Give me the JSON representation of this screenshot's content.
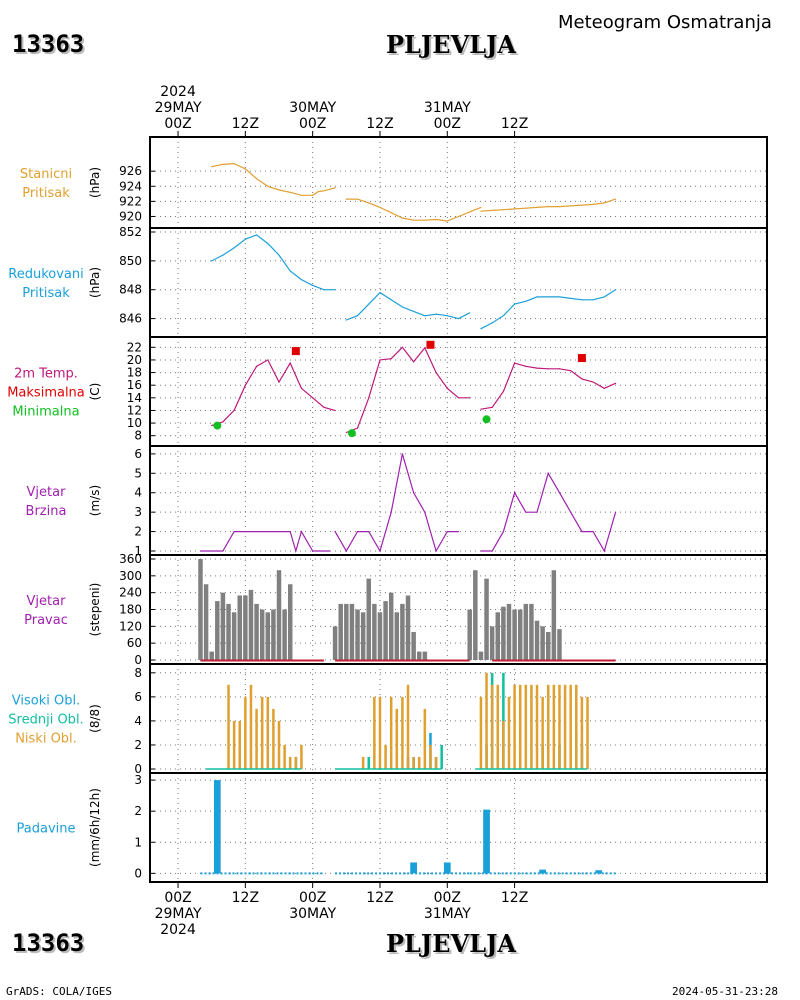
{
  "header": {
    "station_code": "13363",
    "station_name": "PLJEVLJA",
    "subtitle": "Meteogram Osmatranja"
  },
  "footer": {
    "left": "GrADS: COLA/IGES",
    "right": "2024-05-31-23:28"
  },
  "time_axis": {
    "hour_labels": [
      "00Z",
      "12Z",
      "00Z",
      "12Z",
      "00Z",
      "12Z"
    ],
    "top_dates": [
      {
        "lines": [
          "2024",
          "29MAY",
          "00Z"
        ],
        "slot": 0
      },
      {
        "lines": [
          "30MAY",
          "00Z"
        ],
        "slot": 2
      },
      {
        "lines": [
          "31MAY",
          "00Z"
        ],
        "slot": 4
      }
    ],
    "bottom_dates": [
      {
        "lines": [
          "00Z",
          "29MAY",
          "2024"
        ],
        "slot": 0
      },
      {
        "lines": [
          "00Z",
          "30MAY"
        ],
        "slot": 2
      },
      {
        "lines": [
          "00Z",
          "31MAY"
        ],
        "slot": 4
      }
    ],
    "range_hours": [
      -5,
      105
    ]
  },
  "chart_data": [
    {
      "type": "line",
      "id": "station-pressure",
      "labels": [
        "Stanicni",
        "Pritisak"
      ],
      "label_color": "#e0a030",
      "unit": "(hPa)",
      "ylim": [
        919,
        930
      ],
      "yticks": [
        920,
        922,
        924,
        926
      ],
      "color": "#e0a030",
      "series": [
        {
          "x": [
            6,
            8,
            10,
            12,
            14,
            16,
            18,
            20,
            22,
            24,
            25,
            26,
            27,
            28
          ],
          "y": [
            926.6,
            926.9,
            927.0,
            926.3,
            925.0,
            924.0,
            923.5,
            923.2,
            922.8,
            922.8,
            923.3,
            923.4,
            923.6,
            923.8
          ]
        },
        {
          "x": [
            30,
            32,
            34,
            36,
            38,
            40,
            42,
            44,
            46,
            48,
            50,
            52,
            54
          ],
          "y": [
            922.3,
            922.3,
            921.8,
            921.2,
            920.5,
            919.8,
            919.5,
            919.5,
            919.6,
            919.4,
            920.0,
            920.6,
            921.2
          ]
        },
        {
          "x": [
            54,
            56,
            58,
            60,
            62,
            64,
            66,
            68,
            70,
            72,
            74,
            76,
            78
          ],
          "y": [
            920.7,
            920.8,
            920.9,
            921.0,
            921.1,
            921.2,
            921.3,
            921.3,
            921.4,
            921.5,
            921.6,
            921.8,
            922.3
          ]
        }
      ]
    },
    {
      "type": "line",
      "id": "reduced-pressure",
      "labels": [
        "Redukovani",
        "Pritisak"
      ],
      "label_color": "#1aa0d8",
      "unit": "(hPa)",
      "ylim": [
        845,
        852
      ],
      "yticks": [
        846,
        848,
        850,
        852
      ],
      "color": "#1aa0d8",
      "series": [
        {
          "x": [
            6,
            8,
            10,
            12,
            14,
            16,
            18,
            20,
            22,
            24,
            26,
            28
          ],
          "y": [
            850.0,
            850.4,
            850.9,
            851.5,
            851.8,
            851.2,
            850.4,
            849.3,
            848.7,
            848.3,
            848.0,
            848.0
          ]
        },
        {
          "x": [
            30,
            32,
            34,
            36,
            38,
            40,
            42,
            44,
            46,
            48,
            50,
            52
          ],
          "y": [
            845.9,
            846.2,
            847.0,
            847.8,
            847.3,
            846.8,
            846.5,
            846.2,
            846.3,
            846.2,
            846.0,
            846.4
          ]
        },
        {
          "x": [
            54,
            56,
            58,
            60,
            62,
            64,
            66,
            68,
            70,
            72,
            74,
            76,
            78
          ],
          "y": [
            845.3,
            845.7,
            846.2,
            847.0,
            847.2,
            847.5,
            847.5,
            847.5,
            847.4,
            847.3,
            847.3,
            847.5,
            848.0
          ]
        }
      ]
    },
    {
      "type": "line",
      "id": "temperature",
      "labels": [
        "2m Temp.",
        "Maksimalna",
        "Minimalna"
      ],
      "label_colors": [
        "#c0187a",
        "#e00000",
        "#10c020"
      ],
      "unit": "(C)",
      "ylim": [
        7,
        23
      ],
      "yticks": [
        8,
        10,
        12,
        14,
        16,
        18,
        20,
        22
      ],
      "color": "#c0187a",
      "series": [
        {
          "x": [
            6,
            8,
            10,
            12,
            14,
            16,
            18,
            20,
            22,
            24,
            26,
            28
          ],
          "y": [
            9.6,
            10.2,
            12.0,
            16.0,
            19.0,
            20.0,
            16.5,
            19.5,
            15.5,
            14.0,
            12.5,
            12.0
          ]
        },
        {
          "x": [
            30,
            32,
            34,
            36,
            38,
            40,
            42,
            44,
            46,
            48,
            50,
            52
          ],
          "y": [
            8.5,
            9.2,
            14.0,
            20.0,
            20.2,
            22.0,
            19.7,
            21.9,
            18.0,
            15.5,
            14.0,
            14.0
          ]
        },
        {
          "x": [
            54,
            56,
            58,
            60,
            62,
            64,
            66,
            68,
            70,
            72,
            74,
            76,
            78
          ],
          "y": [
            12.2,
            12.5,
            15.0,
            19.5,
            19.0,
            18.7,
            18.6,
            18.6,
            18.3,
            17.0,
            16.5,
            15.5,
            16.3
          ]
        }
      ],
      "max_points": [
        {
          "x": 21,
          "y": 21.4
        },
        {
          "x": 45,
          "y": 22.4
        },
        {
          "x": 72,
          "y": 20.3
        }
      ],
      "min_points": [
        {
          "x": 7,
          "y": 9.6
        },
        {
          "x": 31,
          "y": 8.4
        },
        {
          "x": 55,
          "y": 10.6
        }
      ],
      "max_color": "#e00000",
      "min_color": "#10c020"
    },
    {
      "type": "line",
      "id": "wind-speed",
      "labels": [
        "Vjetar",
        "Brzina"
      ],
      "label_color": "#a020b0",
      "unit": "(m/s)",
      "ylim": [
        1,
        6.2
      ],
      "yticks": [
        1,
        2,
        3,
        4,
        5,
        6
      ],
      "color": "#a020b0",
      "series": [
        {
          "x": [
            4,
            7,
            8,
            9,
            10,
            12,
            14,
            16,
            18,
            20,
            21,
            22,
            24,
            25,
            27
          ],
          "y": [
            1.0,
            1.0,
            1.0,
            1.5,
            2.0,
            2.0,
            2.0,
            2.0,
            2.0,
            2.0,
            1.0,
            2.0,
            1.0,
            1.0,
            1.0
          ]
        },
        {
          "x": [
            28,
            30,
            32,
            34,
            36,
            38,
            40,
            42,
            44,
            46,
            48,
            50
          ],
          "y": [
            2.0,
            1.0,
            2.0,
            2.0,
            1.0,
            3.0,
            6.0,
            4.0,
            3.0,
            1.0,
            2.0,
            2.0
          ]
        },
        {
          "x": [
            54,
            56,
            58,
            60,
            62,
            64,
            66,
            68,
            70,
            72,
            74,
            76,
            78
          ],
          "y": [
            1.0,
            1.0,
            2.0,
            4.0,
            3.0,
            3.0,
            5.0,
            4.0,
            3.0,
            2.0,
            2.0,
            1.0,
            3.0
          ]
        }
      ]
    },
    {
      "type": "bar",
      "id": "wind-direction",
      "labels": [
        "Vjetar",
        "Pravac"
      ],
      "label_color": "#a020b0",
      "unit": "(stepeni)",
      "ylim": [
        0,
        360
      ],
      "yticks": [
        0,
        60,
        120,
        180,
        240,
        300,
        360
      ],
      "color": "#808080",
      "baseline_color": "#c02030",
      "baseline_ranges": [
        [
          4,
          26
        ],
        [
          28,
          52
        ],
        [
          56,
          78
        ]
      ],
      "bar_hours": 1,
      "x": [
        4,
        5,
        6,
        7,
        8,
        9,
        10,
        11,
        12,
        13,
        14,
        15,
        16,
        17,
        18,
        19,
        20,
        21,
        22,
        23,
        24,
        25,
        26,
        27,
        28,
        29,
        30,
        31,
        32,
        33,
        34,
        35,
        36,
        37,
        38,
        39,
        40,
        41,
        42,
        43,
        44,
        45,
        46,
        47,
        48,
        49,
        50,
        51,
        52,
        53,
        54,
        55,
        56,
        57,
        58,
        59,
        60,
        61,
        62,
        63,
        64,
        65,
        66,
        67,
        68,
        69,
        70,
        71,
        72,
        73,
        74,
        75
      ],
      "values": [
        360,
        270,
        30,
        210,
        240,
        200,
        170,
        230,
        230,
        250,
        200,
        180,
        170,
        180,
        320,
        180,
        270,
        0,
        0,
        0,
        0,
        0,
        0,
        0,
        120,
        200,
        200,
        200,
        180,
        170,
        290,
        200,
        170,
        210,
        240,
        170,
        200,
        230,
        100,
        30,
        30,
        0,
        0,
        0,
        0,
        0,
        0,
        0,
        180,
        320,
        30,
        290,
        120,
        170,
        190,
        200,
        180,
        180,
        200,
        200,
        140,
        120,
        100,
        320,
        110,
        0,
        0,
        0,
        0,
        0,
        0,
        0
      ]
    },
    {
      "type": "bar",
      "id": "cloud-cover",
      "labels": [
        "Visoki Obl.",
        "Srednji Obl.",
        "Niski Obl."
      ],
      "label_colors": [
        "#1aa0d8",
        "#10c0a0",
        "#e0a030"
      ],
      "unit": "(8/8)",
      "ylim": [
        0,
        8.4
      ],
      "yticks": [
        0,
        2,
        4,
        6,
        8
      ],
      "series": [
        {
          "name": "Visoki Obl.",
          "color": "#1aa0d8",
          "x": [
            20,
            21,
            41,
            42,
            43,
            45,
            46
          ],
          "values": [
            1,
            1,
            1,
            1,
            1,
            3,
            1
          ]
        },
        {
          "name": "Srednji Obl.",
          "color": "#10c0a0",
          "x": [
            20,
            21,
            34,
            43,
            47,
            55,
            56,
            58,
            65,
            66,
            68,
            71,
            72
          ],
          "values": [
            1,
            1,
            1,
            1,
            2,
            2,
            8,
            8,
            2,
            2,
            2,
            3,
            2
          ]
        },
        {
          "name": "Niski Obl.",
          "color": "#e0a030",
          "x": [
            9,
            10,
            11,
            12,
            13,
            14,
            15,
            16,
            17,
            18,
            19,
            20,
            21,
            22,
            33,
            35,
            36,
            37,
            38,
            39,
            40,
            41,
            42,
            43,
            44,
            45,
            46,
            54,
            55,
            56,
            57,
            58,
            59,
            60,
            61,
            62,
            63,
            64,
            65,
            66,
            67,
            68,
            69,
            70,
            71,
            72,
            73
          ],
          "values": [
            7,
            4,
            4,
            6,
            7,
            5,
            6,
            6,
            5,
            4,
            2,
            1,
            1,
            2,
            1,
            6,
            6,
            2,
            6,
            5,
            6,
            7,
            1,
            1,
            5,
            2,
            1,
            6,
            8,
            7,
            7,
            4,
            6,
            7,
            7,
            7,
            7,
            7,
            6,
            7,
            7,
            7,
            7,
            7,
            7,
            6,
            6
          ]
        }
      ]
    },
    {
      "type": "bar",
      "id": "precipitation",
      "labels": [
        "Padavine"
      ],
      "label_color": "#1aa0d8",
      "unit": "(mm/6h/12h)",
      "ylim": [
        -0.15,
        3.1
      ],
      "yticks": [
        0,
        1,
        2,
        3
      ],
      "color": "#1aa0d8",
      "bar_hours": 1.5,
      "x": [
        7,
        42,
        48,
        55,
        65,
        75
      ],
      "values": [
        3.0,
        0.35,
        0.35,
        2.05,
        0.12,
        0.1
      ],
      "trace_ranges": [
        [
          4,
          26
        ],
        [
          28,
          52
        ],
        [
          52,
          78
        ]
      ]
    }
  ]
}
